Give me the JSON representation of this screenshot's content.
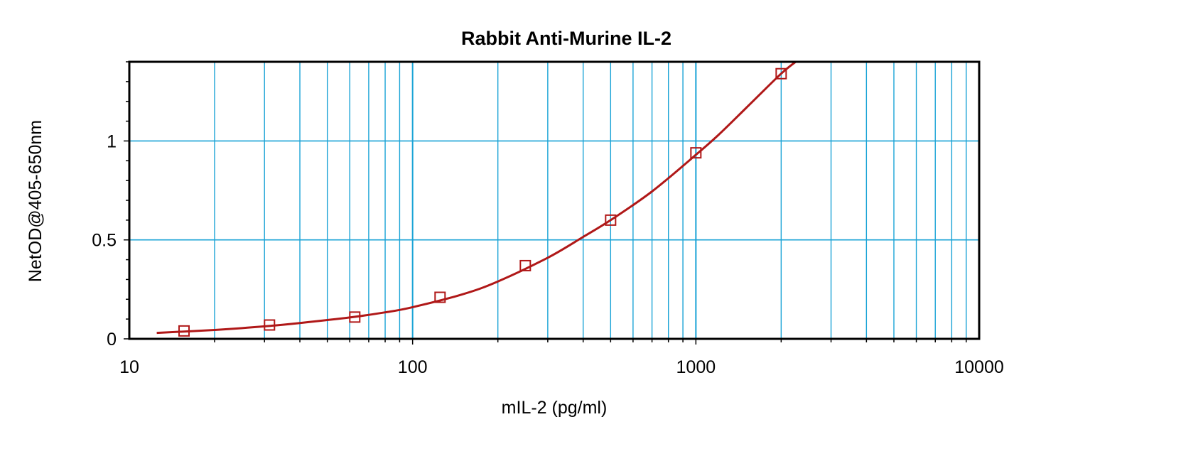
{
  "chart_data": {
    "type": "scatter",
    "title": "Rabbit Anti-Murine IL-2",
    "xlabel": "mIL-2 (pg/ml)",
    "ylabel": "NetOD@405-650nm",
    "xscale": "log",
    "xlim": [
      10,
      10000
    ],
    "ylim": [
      0,
      1.4
    ],
    "grid": {
      "x_major": true,
      "x_minor": true,
      "y_major": true
    },
    "x_ticks": [
      {
        "value": 10,
        "label": "10"
      },
      {
        "value": 100,
        "label": "100"
      },
      {
        "value": 1000,
        "label": "1000"
      },
      {
        "value": 10000,
        "label": "10000"
      }
    ],
    "y_ticks": [
      {
        "value": 0,
        "label": "0"
      },
      {
        "value": 0.5,
        "label": "0.5"
      },
      {
        "value": 1,
        "label": "1"
      }
    ],
    "series": [
      {
        "x": [
          15.6,
          31.25,
          62.5,
          125,
          250,
          500,
          1000,
          2000
        ],
        "y": [
          0.04,
          0.07,
          0.11,
          0.21,
          0.37,
          0.6,
          0.94,
          1.34
        ]
      }
    ],
    "fit_curve": {
      "x": [
        12.5,
        20,
        30,
        40,
        60,
        80,
        100,
        150,
        200,
        300,
        400,
        500,
        700,
        1000,
        1200,
        1500,
        2000,
        2300
      ],
      "y": [
        0.03,
        0.045,
        0.063,
        0.08,
        0.108,
        0.134,
        0.16,
        0.225,
        0.29,
        0.41,
        0.515,
        0.6,
        0.745,
        0.93,
        1.03,
        1.165,
        1.34,
        1.41
      ]
    },
    "colors": {
      "curve": "#b01818",
      "marker": "#b01818",
      "grid": "#1aa3d6",
      "axis": "#000000"
    }
  }
}
